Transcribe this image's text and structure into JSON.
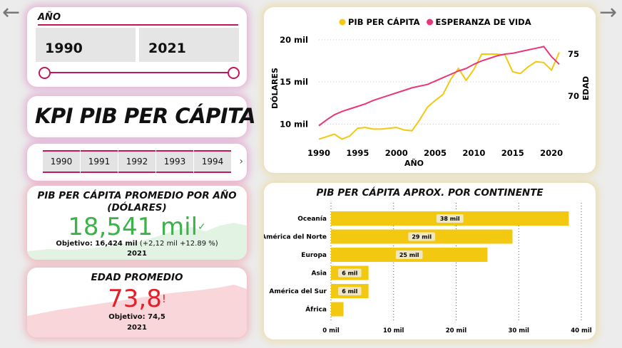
{
  "nav": {
    "back_icon": "arrow-left-icon",
    "forward_icon": "arrow-right-icon"
  },
  "year_filter": {
    "label": "AÑO",
    "from": "1990",
    "to": "2021"
  },
  "page_title": "KPI PIB PER CÁPITA",
  "year_strip": {
    "years": [
      "1990",
      "1991",
      "1992",
      "1993",
      "1994"
    ]
  },
  "kpi_pib": {
    "title_line1": "PIB PER CÁPITA PROMEDIO POR AÑO",
    "title_line2": "(DÓLARES)",
    "value": "18,541 mil",
    "status_icon": "check-icon",
    "target_label": "Objetivo: 16,424 mil",
    "target_delta": "(+2,12 mil +12.89 %)",
    "year": "2021",
    "value_color": "#3cb34a"
  },
  "kpi_edad": {
    "title": "EDAD PROMEDIO",
    "value": "73,8",
    "status_icon": "exclamation-icon",
    "target_label": "Objetivo: 74,5",
    "year": "2021",
    "value_color": "#e3202a"
  },
  "chart_data": [
    {
      "type": "line",
      "legend": "top",
      "x": [
        1990,
        1991,
        1992,
        1993,
        1994,
        1995,
        1996,
        1997,
        1998,
        1999,
        2000,
        2001,
        2002,
        2003,
        2004,
        2005,
        2006,
        2007,
        2008,
        2009,
        2010,
        2011,
        2012,
        2013,
        2014,
        2015,
        2016,
        2017,
        2018,
        2019,
        2020,
        2021
      ],
      "xlabel": "AÑO",
      "xticks": [
        "1990",
        "1995",
        "2000",
        "2005",
        "2010",
        "2015",
        "2020"
      ],
      "series": [
        {
          "name": "PIB PER CÁPITA",
          "axis": "left",
          "color": "#f2c811",
          "values": [
            8.2,
            8.5,
            8.8,
            8.2,
            8.6,
            9.5,
            9.6,
            9.4,
            9.4,
            9.5,
            9.6,
            9.3,
            9.2,
            10.5,
            12,
            12.8,
            13.5,
            15.3,
            16.6,
            15.2,
            16.5,
            18.3,
            18.3,
            18.3,
            18.2,
            16.2,
            16.0,
            16.8,
            17.4,
            17.3,
            16.4,
            18.5
          ]
        },
        {
          "name": "ESPERANZA DE VIDA",
          "axis": "right",
          "color": "#e8377a",
          "values": [
            66.5,
            67.2,
            67.8,
            68.2,
            68.5,
            68.8,
            69.1,
            69.5,
            69.8,
            70.1,
            70.4,
            70.7,
            71.0,
            71.2,
            71.4,
            71.8,
            72.2,
            72.6,
            73.0,
            73.3,
            73.8,
            74.2,
            74.5,
            74.8,
            75.0,
            75.1,
            75.3,
            75.5,
            75.7,
            75.9,
            74.7,
            73.8
          ]
        }
      ],
      "ylabel_left": "DÓLARES",
      "yticks_left": [
        "10 mil",
        "15 mil",
        "20 mil"
      ],
      "ylim_left": [
        8,
        20.5
      ],
      "ylabel_right": "EDAD",
      "yticks_right": [
        "70",
        "75"
      ],
      "ylim_right": [
        64.7,
        77.2
      ]
    },
    {
      "type": "bar",
      "orientation": "horizontal",
      "title": "PIB PER CÁPITA APROX. POR CONTINENTE",
      "categories": [
        "Oceanía",
        "América del Norte",
        "Europa",
        "Asia",
        "América del Sur",
        "África"
      ],
      "values": [
        38,
        29,
        25,
        6,
        6,
        2
      ],
      "labels": [
        "38 mil",
        "29 mil",
        "25 mil",
        "6 mil",
        "6 mil",
        ""
      ],
      "xticks": [
        "0 mil",
        "10 mil",
        "20 mil",
        "30 mil",
        "40 mil"
      ],
      "xlim": [
        0,
        40
      ],
      "color": "#f2c811",
      "grid": "vertical dotted"
    }
  ]
}
